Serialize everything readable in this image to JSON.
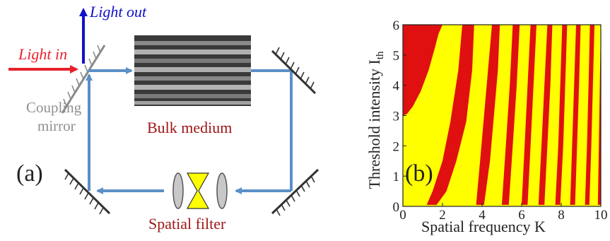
{
  "diagram": {
    "panel_label": "(a)",
    "light_in": "Light in",
    "light_out": "Light out",
    "coupling_mirror": [
      "Coupling",
      "mirror"
    ],
    "bulk_medium": "Bulk medium",
    "spatial_filter": "Spatial filter",
    "colors": {
      "light_in": "#e8202a",
      "light_out": "#1010cc",
      "beam": "#5b8fc7",
      "coupling_text": "#909090",
      "medium_text": "#a01818",
      "filter_text": "#a01818",
      "lens": "#c8c8c8",
      "filter_cone": "#ffff00"
    }
  },
  "chart_data": {
    "type": "heatmap",
    "panel_label": "(b)",
    "xlabel": "Spatial frequency K",
    "ylabel_main": "Threshold intensity I",
    "ylabel_sub": "th",
    "xlim": [
      0,
      10
    ],
    "ylim": [
      0,
      6
    ],
    "xticks": [
      "0",
      "2",
      "4",
      "6",
      "8",
      "10"
    ],
    "yticks": [
      "0",
      "1",
      "2",
      "3",
      "4",
      "5",
      "6"
    ],
    "background_color": "#ffff00",
    "region_color": "#e01010",
    "regions": [
      {
        "name": "top-left-region",
        "boundary_k": [
          0,
          0.2,
          0.5,
          0.9,
          1.3,
          1.6,
          1.8,
          2.0
        ],
        "boundary_i": [
          3.0,
          3.05,
          3.3,
          3.8,
          4.5,
          5.2,
          5.7,
          6.0
        ],
        "close_to": [
          0,
          6
        ]
      },
      {
        "name": "band-1",
        "left_k": [
          1.2,
          1.5,
          2.0,
          2.4,
          2.8,
          3.0
        ],
        "left_i": [
          0.05,
          0.5,
          1.5,
          2.8,
          4.5,
          6.0
        ],
        "right_k": [
          1.7,
          2.2,
          2.7,
          3.2,
          3.5,
          3.6
        ],
        "right_i": [
          0.05,
          0.5,
          1.5,
          2.8,
          4.5,
          6.0
        ]
      },
      {
        "name": "band-2",
        "left_k": [
          3.7,
          3.9,
          4.1,
          4.3,
          4.5
        ],
        "left_i": [
          0.05,
          1.5,
          3.0,
          4.5,
          6.0
        ],
        "right_k": [
          4.1,
          4.4,
          4.6,
          4.8,
          4.9
        ],
        "right_i": [
          0.05,
          1.5,
          3.0,
          4.5,
          6.0
        ]
      },
      {
        "name": "band-3",
        "left_k": [
          5.0,
          5.2,
          5.4,
          5.55
        ],
        "left_i": [
          0.05,
          2.0,
          4.0,
          6.0
        ],
        "right_k": [
          5.35,
          5.55,
          5.75,
          5.9
        ],
        "right_i": [
          0.05,
          2.0,
          4.0,
          6.0
        ]
      },
      {
        "name": "band-4",
        "left_k": [
          6.0,
          6.15,
          6.3,
          6.45
        ],
        "left_i": [
          0.05,
          2.0,
          4.0,
          6.0
        ],
        "right_k": [
          6.3,
          6.45,
          6.6,
          6.75
        ],
        "right_i": [
          0.05,
          2.0,
          4.0,
          6.0
        ]
      },
      {
        "name": "band-5",
        "left_k": [
          6.85,
          7.0,
          7.15,
          7.3
        ],
        "left_i": [
          0.05,
          2.0,
          4.0,
          6.0
        ],
        "right_k": [
          7.15,
          7.3,
          7.45,
          7.55
        ],
        "right_i": [
          0.05,
          2.0,
          4.0,
          6.0
        ]
      },
      {
        "name": "band-6",
        "left_k": [
          7.7,
          7.85,
          7.95,
          8.05
        ],
        "left_i": [
          0.05,
          2.0,
          4.0,
          6.0
        ],
        "right_k": [
          7.95,
          8.1,
          8.2,
          8.3
        ],
        "right_i": [
          0.05,
          2.0,
          4.0,
          6.0
        ]
      },
      {
        "name": "band-7",
        "left_k": [
          8.45,
          8.55,
          8.65,
          8.75
        ],
        "left_i": [
          0.05,
          2.0,
          4.0,
          6.0
        ],
        "right_k": [
          8.7,
          8.8,
          8.9,
          8.98
        ],
        "right_i": [
          0.05,
          2.0,
          4.0,
          6.0
        ]
      },
      {
        "name": "band-8",
        "left_k": [
          9.2,
          9.3,
          9.38,
          9.45
        ],
        "left_i": [
          0.05,
          2.0,
          4.0,
          6.0
        ],
        "right_k": [
          9.42,
          9.52,
          9.6,
          9.68
        ],
        "right_i": [
          0.05,
          2.0,
          4.0,
          6.0
        ]
      },
      {
        "name": "band-9",
        "left_k": [
          9.85,
          9.9,
          9.95,
          10.0
        ],
        "left_i": [
          0.05,
          2.0,
          4.0,
          6.0
        ],
        "right_k": [
          10.0,
          10.0,
          10.0,
          10.0
        ],
        "right_i": [
          0.05,
          2.0,
          4.0,
          6.0
        ]
      }
    ]
  }
}
